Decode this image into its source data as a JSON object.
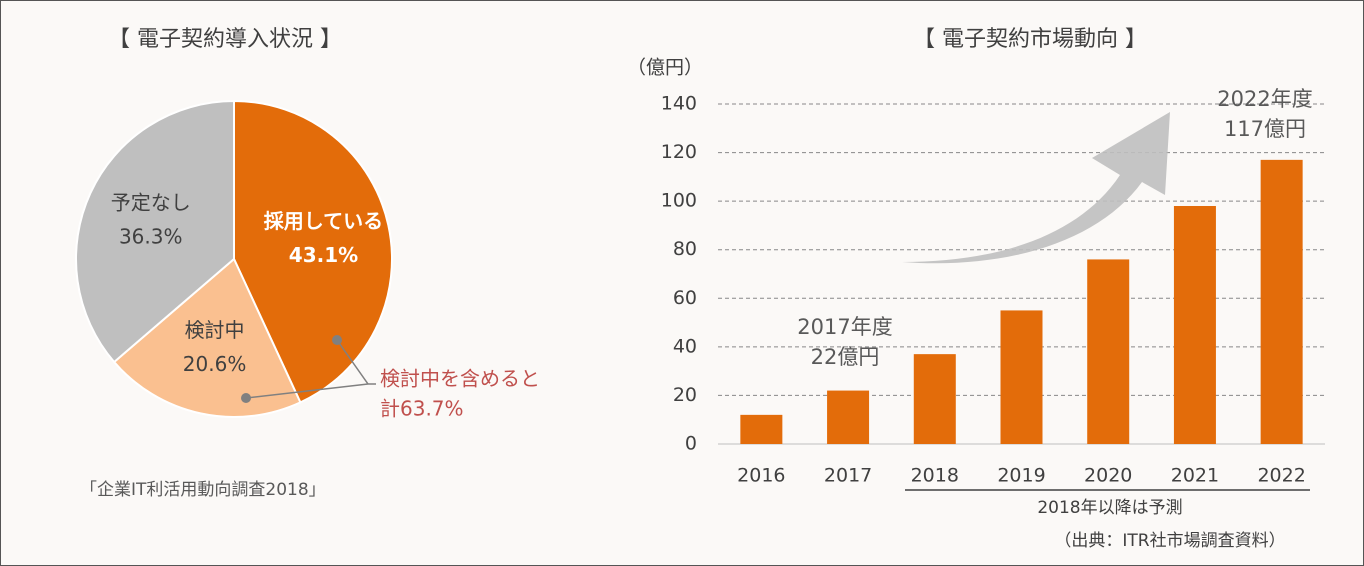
{
  "chart_data": [
    {
      "type": "pie",
      "title": "【 電子契約導入状況 】",
      "categories": [
        "採用している",
        "検討中",
        "予定なし"
      ],
      "values": [
        43.1,
        20.6,
        36.3
      ],
      "value_labels": [
        "43.1%",
        "20.6%",
        "36.3%"
      ],
      "colors": [
        "#e36c0a",
        "#fac090",
        "#bfbfbf"
      ],
      "annotation": [
        "検討中を含めると",
        "計63.7%"
      ],
      "source": "「企業IT利活用動向調査2018」"
    },
    {
      "type": "bar",
      "title": "【 電子契約市場動向 】",
      "y_label": "（億円）",
      "categories": [
        "2016",
        "2017",
        "2018",
        "2019",
        "2020",
        "2021",
        "2022"
      ],
      "values": [
        12,
        22,
        37,
        55,
        76,
        98,
        117
      ],
      "color": "#e36c0a",
      "ylim": [
        0,
        140
      ],
      "yticks": [
        0,
        20,
        40,
        60,
        80,
        100,
        120,
        140
      ],
      "grid": true,
      "annotations": [
        [
          "2017年度",
          "22億円"
        ],
        [
          "2022年度",
          "117億円"
        ]
      ],
      "forecast_note": "2018年以降は予測",
      "source": "（出典：ITR社市場調査資料）"
    }
  ]
}
